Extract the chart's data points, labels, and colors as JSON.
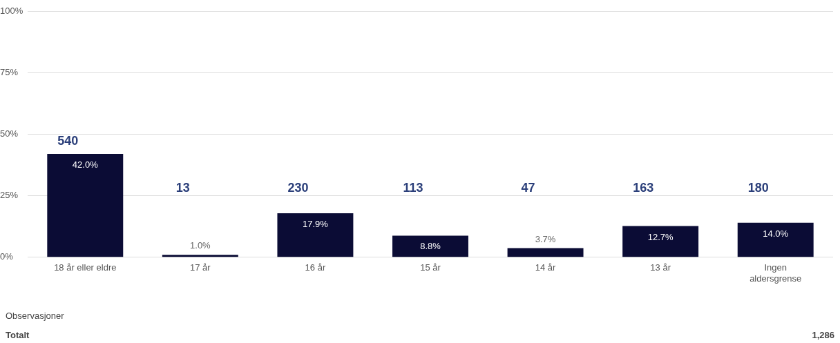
{
  "chart_data": {
    "type": "bar",
    "categories": [
      "18 år eller eldre",
      "17 år",
      "16 år",
      "15 år",
      "14 år",
      "13 år",
      "Ingen aldersgrense"
    ],
    "values": [
      42.0,
      1.0,
      17.9,
      8.8,
      3.7,
      12.7,
      14.0
    ],
    "value_labels": [
      "42.0%",
      "1.0%",
      "17.9%",
      "8.8%",
      "3.7%",
      "12.7%",
      "14.0%"
    ],
    "color": "#0b0c35",
    "ylim": [
      0,
      100
    ],
    "yticks": [
      {
        "value": 0,
        "label": "0%"
      },
      {
        "value": 25,
        "label": "25%"
      },
      {
        "value": 50,
        "label": "50%"
      },
      {
        "value": 75,
        "label": "75%"
      },
      {
        "value": 100,
        "label": "100%"
      }
    ],
    "grid": "y",
    "annotations": [
      "540",
      "13",
      "230",
      "113",
      "47",
      "163",
      "180",
      "Observasjoner",
      "Totalt",
      "1,286"
    ]
  }
}
